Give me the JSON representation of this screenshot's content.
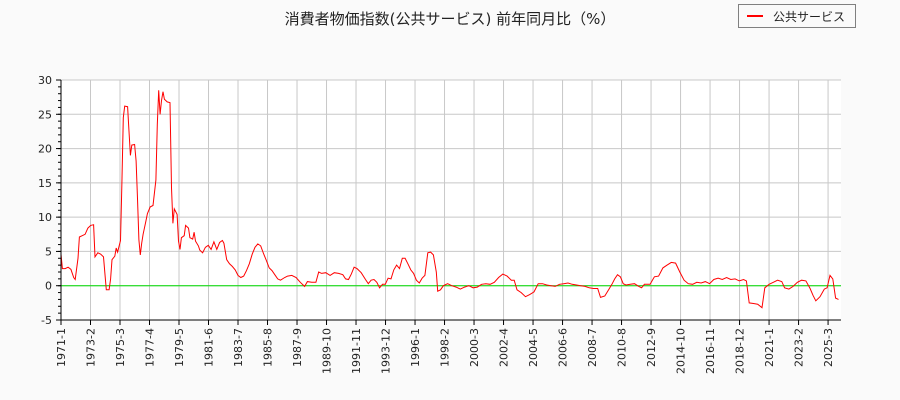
{
  "title": "消費者物価指数(公共サービス) 前年同月比（%）",
  "legend": {
    "label": "公共サービス",
    "color": "#ff0000"
  },
  "colors": {
    "line": "#ff0000",
    "zero_line": "#00dd00",
    "grid": "#c8c8c8",
    "axis": "#000000"
  },
  "chart_data": {
    "type": "line",
    "title": "消費者物価指数(公共サービス) 前年同月比（%）",
    "xlabel": "",
    "ylabel": "",
    "ylim": [
      -5,
      30
    ],
    "yticks": [
      30,
      25,
      20,
      15,
      10,
      5,
      0,
      -5
    ],
    "xticks": [
      "1971-1",
      "1973-2",
      "1975-3",
      "1977-4",
      "1979-5",
      "1981-6",
      "1983-7",
      "1985-8",
      "1987-9",
      "1989-10",
      "1991-11",
      "1993-12",
      "1996-1",
      "1998-2",
      "2000-3",
      "2002-4",
      "2004-5",
      "2006-6",
      "2008-7",
      "2010-8",
      "2012-9",
      "2014-10",
      "2016-11",
      "2018-12",
      "2021-1",
      "2023-2",
      "2025-3"
    ],
    "grid": true,
    "legend_position": "top-right",
    "series": [
      {
        "name": "公共サービス",
        "points": [
          [
            1971.0,
            4.6
          ],
          [
            1971.1,
            2.5
          ],
          [
            1971.3,
            2.5
          ],
          [
            1971.5,
            2.7
          ],
          [
            1971.7,
            2.4
          ],
          [
            1971.9,
            1.2
          ],
          [
            1972.0,
            0.9
          ],
          [
            1972.2,
            4.0
          ],
          [
            1972.3,
            7.1
          ],
          [
            1972.5,
            7.3
          ],
          [
            1972.7,
            7.5
          ],
          [
            1972.9,
            8.4
          ],
          [
            1973.1,
            8.8
          ],
          [
            1973.3,
            8.9
          ],
          [
            1973.4,
            4.2
          ],
          [
            1973.6,
            4.8
          ],
          [
            1973.8,
            4.6
          ],
          [
            1974.0,
            4.2
          ],
          [
            1974.1,
            1.8
          ],
          [
            1974.2,
            -0.6
          ],
          [
            1974.4,
            -0.6
          ],
          [
            1974.5,
            1.0
          ],
          [
            1974.6,
            3.8
          ],
          [
            1974.8,
            4.3
          ],
          [
            1974.9,
            5.5
          ],
          [
            1975.0,
            4.9
          ],
          [
            1975.2,
            6.6
          ],
          [
            1975.3,
            15.0
          ],
          [
            1975.4,
            24.5
          ],
          [
            1975.5,
            26.2
          ],
          [
            1975.7,
            26.1
          ],
          [
            1975.8,
            22.5
          ],
          [
            1975.9,
            19.0
          ],
          [
            1976.0,
            20.5
          ],
          [
            1976.2,
            20.6
          ],
          [
            1976.3,
            18.2
          ],
          [
            1976.4,
            12.7
          ],
          [
            1976.5,
            6.7
          ],
          [
            1976.6,
            4.5
          ],
          [
            1976.7,
            6.2
          ],
          [
            1976.8,
            7.5
          ],
          [
            1977.0,
            9.5
          ],
          [
            1977.1,
            10.5
          ],
          [
            1977.3,
            11.5
          ],
          [
            1977.5,
            11.7
          ],
          [
            1977.7,
            15.4
          ],
          [
            1977.8,
            23.5
          ],
          [
            1977.9,
            28.5
          ],
          [
            1978.0,
            25.0
          ],
          [
            1978.1,
            27.0
          ],
          [
            1978.2,
            28.3
          ],
          [
            1978.3,
            27.2
          ],
          [
            1978.5,
            26.8
          ],
          [
            1978.7,
            26.7
          ],
          [
            1978.8,
            14.3
          ],
          [
            1978.9,
            9.1
          ],
          [
            1979.0,
            11.2
          ],
          [
            1979.2,
            10.4
          ],
          [
            1979.3,
            6.5
          ],
          [
            1979.4,
            5.3
          ],
          [
            1979.5,
            7.0
          ],
          [
            1979.7,
            7.3
          ],
          [
            1979.8,
            8.8
          ],
          [
            1980.0,
            8.4
          ],
          [
            1980.1,
            7.0
          ],
          [
            1980.3,
            6.8
          ],
          [
            1980.4,
            7.8
          ],
          [
            1980.5,
            6.5
          ],
          [
            1980.7,
            5.8
          ],
          [
            1980.8,
            5.2
          ],
          [
            1981.0,
            4.8
          ],
          [
            1981.2,
            5.6
          ],
          [
            1981.4,
            5.9
          ],
          [
            1981.6,
            5.3
          ],
          [
            1981.8,
            6.4
          ],
          [
            1982.0,
            5.3
          ],
          [
            1982.2,
            6.3
          ],
          [
            1982.4,
            6.6
          ],
          [
            1982.5,
            6.2
          ],
          [
            1982.7,
            3.8
          ],
          [
            1982.9,
            3.2
          ],
          [
            1983.1,
            2.8
          ],
          [
            1983.3,
            2.3
          ],
          [
            1983.5,
            1.5
          ],
          [
            1983.7,
            1.2
          ],
          [
            1983.9,
            1.4
          ],
          [
            1984.1,
            2.2
          ],
          [
            1984.3,
            3.2
          ],
          [
            1984.5,
            4.6
          ],
          [
            1984.7,
            5.6
          ],
          [
            1984.9,
            6.1
          ],
          [
            1985.1,
            5.8
          ],
          [
            1985.3,
            4.7
          ],
          [
            1985.5,
            3.7
          ],
          [
            1985.7,
            2.6
          ],
          [
            1985.9,
            2.2
          ],
          [
            1986.1,
            1.6
          ],
          [
            1986.3,
            1.0
          ],
          [
            1986.5,
            0.8
          ],
          [
            1986.8,
            1.2
          ],
          [
            1987.0,
            1.4
          ],
          [
            1987.3,
            1.5
          ],
          [
            1987.6,
            1.2
          ],
          [
            1987.9,
            0.5
          ],
          [
            1988.2,
            -0.1
          ],
          [
            1988.4,
            0.6
          ],
          [
            1988.7,
            0.5
          ],
          [
            1989.0,
            0.5
          ],
          [
            1989.2,
            2.0
          ],
          [
            1989.4,
            1.8
          ],
          [
            1989.7,
            1.9
          ],
          [
            1990.0,
            1.5
          ],
          [
            1990.3,
            1.9
          ],
          [
            1990.6,
            1.8
          ],
          [
            1990.9,
            1.6
          ],
          [
            1991.1,
            1.0
          ],
          [
            1991.3,
            0.9
          ],
          [
            1991.5,
            1.7
          ],
          [
            1991.7,
            2.7
          ],
          [
            1991.9,
            2.5
          ],
          [
            1992.2,
            1.9
          ],
          [
            1992.5,
            0.9
          ],
          [
            1992.7,
            0.3
          ],
          [
            1992.9,
            0.8
          ],
          [
            1993.1,
            0.9
          ],
          [
            1993.3,
            0.5
          ],
          [
            1993.5,
            -0.3
          ],
          [
            1993.7,
            0.2
          ],
          [
            1993.9,
            0.2
          ],
          [
            1994.1,
            1.1
          ],
          [
            1994.3,
            1.0
          ],
          [
            1994.5,
            2.3
          ],
          [
            1994.7,
            3.0
          ],
          [
            1994.9,
            2.5
          ],
          [
            1995.1,
            4.0
          ],
          [
            1995.3,
            4.0
          ],
          [
            1995.5,
            3.2
          ],
          [
            1995.7,
            2.3
          ],
          [
            1995.9,
            1.8
          ],
          [
            1996.1,
            0.8
          ],
          [
            1996.3,
            0.4
          ],
          [
            1996.5,
            1.1
          ],
          [
            1996.7,
            1.5
          ],
          [
            1996.9,
            4.8
          ],
          [
            1997.1,
            4.9
          ],
          [
            1997.3,
            4.5
          ],
          [
            1997.5,
            2.0
          ],
          [
            1997.6,
            -0.8
          ],
          [
            1997.8,
            -0.6
          ],
          [
            1998.0,
            0.0
          ],
          [
            1998.3,
            0.3
          ],
          [
            1998.6,
            0.0
          ],
          [
            1998.9,
            -0.2
          ],
          [
            1999.2,
            -0.5
          ],
          [
            1999.5,
            -0.2
          ],
          [
            1999.8,
            0.0
          ],
          [
            2000.1,
            -0.3
          ],
          [
            2000.4,
            -0.2
          ],
          [
            2000.7,
            0.2
          ],
          [
            2001.0,
            0.3
          ],
          [
            2001.3,
            0.2
          ],
          [
            2001.6,
            0.5
          ],
          [
            2001.9,
            1.2
          ],
          [
            2002.2,
            1.7
          ],
          [
            2002.5,
            1.4
          ],
          [
            2002.8,
            0.8
          ],
          [
            2003.0,
            0.8
          ],
          [
            2003.2,
            -0.6
          ],
          [
            2003.5,
            -1.0
          ],
          [
            2003.8,
            -1.6
          ],
          [
            2004.1,
            -1.3
          ],
          [
            2004.4,
            -0.9
          ],
          [
            2004.7,
            0.3
          ],
          [
            2005.0,
            0.3
          ],
          [
            2005.3,
            0.1
          ],
          [
            2005.6,
            0.0
          ],
          [
            2005.9,
            -0.1
          ],
          [
            2006.2,
            0.2
          ],
          [
            2006.5,
            0.3
          ],
          [
            2006.8,
            0.4
          ],
          [
            2007.1,
            0.2
          ],
          [
            2007.4,
            0.1
          ],
          [
            2007.7,
            0.0
          ],
          [
            2008.0,
            -0.1
          ],
          [
            2008.3,
            -0.3
          ],
          [
            2008.6,
            -0.4
          ],
          [
            2008.9,
            -0.4
          ],
          [
            2009.1,
            -1.7
          ],
          [
            2009.4,
            -1.5
          ],
          [
            2009.7,
            -0.5
          ],
          [
            2009.9,
            0.2
          ],
          [
            2010.1,
            1.0
          ],
          [
            2010.3,
            1.6
          ],
          [
            2010.5,
            1.3
          ],
          [
            2010.7,
            0.3
          ],
          [
            2010.9,
            0.1
          ],
          [
            2011.2,
            0.2
          ],
          [
            2011.5,
            0.3
          ],
          [
            2011.8,
            -0.1
          ],
          [
            2012.0,
            -0.3
          ],
          [
            2012.2,
            0.2
          ],
          [
            2012.6,
            0.2
          ],
          [
            2012.9,
            1.3
          ],
          [
            2013.2,
            1.4
          ],
          [
            2013.5,
            2.6
          ],
          [
            2013.8,
            3.0
          ],
          [
            2014.1,
            3.4
          ],
          [
            2014.4,
            3.3
          ],
          [
            2014.7,
            2.0
          ],
          [
            2015.0,
            0.8
          ],
          [
            2015.3,
            0.3
          ],
          [
            2015.6,
            0.2
          ],
          [
            2015.9,
            0.5
          ],
          [
            2016.2,
            0.4
          ],
          [
            2016.5,
            0.6
          ],
          [
            2016.8,
            0.3
          ],
          [
            2017.1,
            0.9
          ],
          [
            2017.4,
            1.1
          ],
          [
            2017.7,
            0.9
          ],
          [
            2018.0,
            1.2
          ],
          [
            2018.3,
            0.9
          ],
          [
            2018.6,
            1.0
          ],
          [
            2018.9,
            0.7
          ],
          [
            2019.2,
            0.9
          ],
          [
            2019.4,
            0.7
          ],
          [
            2019.6,
            -2.5
          ],
          [
            2019.9,
            -2.6
          ],
          [
            2020.2,
            -2.7
          ],
          [
            2020.5,
            -3.2
          ],
          [
            2020.7,
            -0.3
          ],
          [
            2021.0,
            0.2
          ],
          [
            2021.3,
            0.5
          ],
          [
            2021.6,
            0.8
          ],
          [
            2021.9,
            0.6
          ],
          [
            2022.1,
            -0.3
          ],
          [
            2022.4,
            -0.5
          ],
          [
            2022.7,
            -0.1
          ],
          [
            2023.0,
            0.5
          ],
          [
            2023.3,
            0.8
          ],
          [
            2023.6,
            0.7
          ],
          [
            2023.9,
            -0.4
          ],
          [
            2024.1,
            -1.4
          ],
          [
            2024.3,
            -2.2
          ],
          [
            2024.6,
            -1.6
          ],
          [
            2024.9,
            -0.5
          ],
          [
            2025.1,
            -0.3
          ],
          [
            2025.3,
            1.5
          ],
          [
            2025.5,
            1.0
          ],
          [
            2025.7,
            -1.8
          ],
          [
            2025.9,
            -2.0
          ]
        ]
      }
    ]
  }
}
